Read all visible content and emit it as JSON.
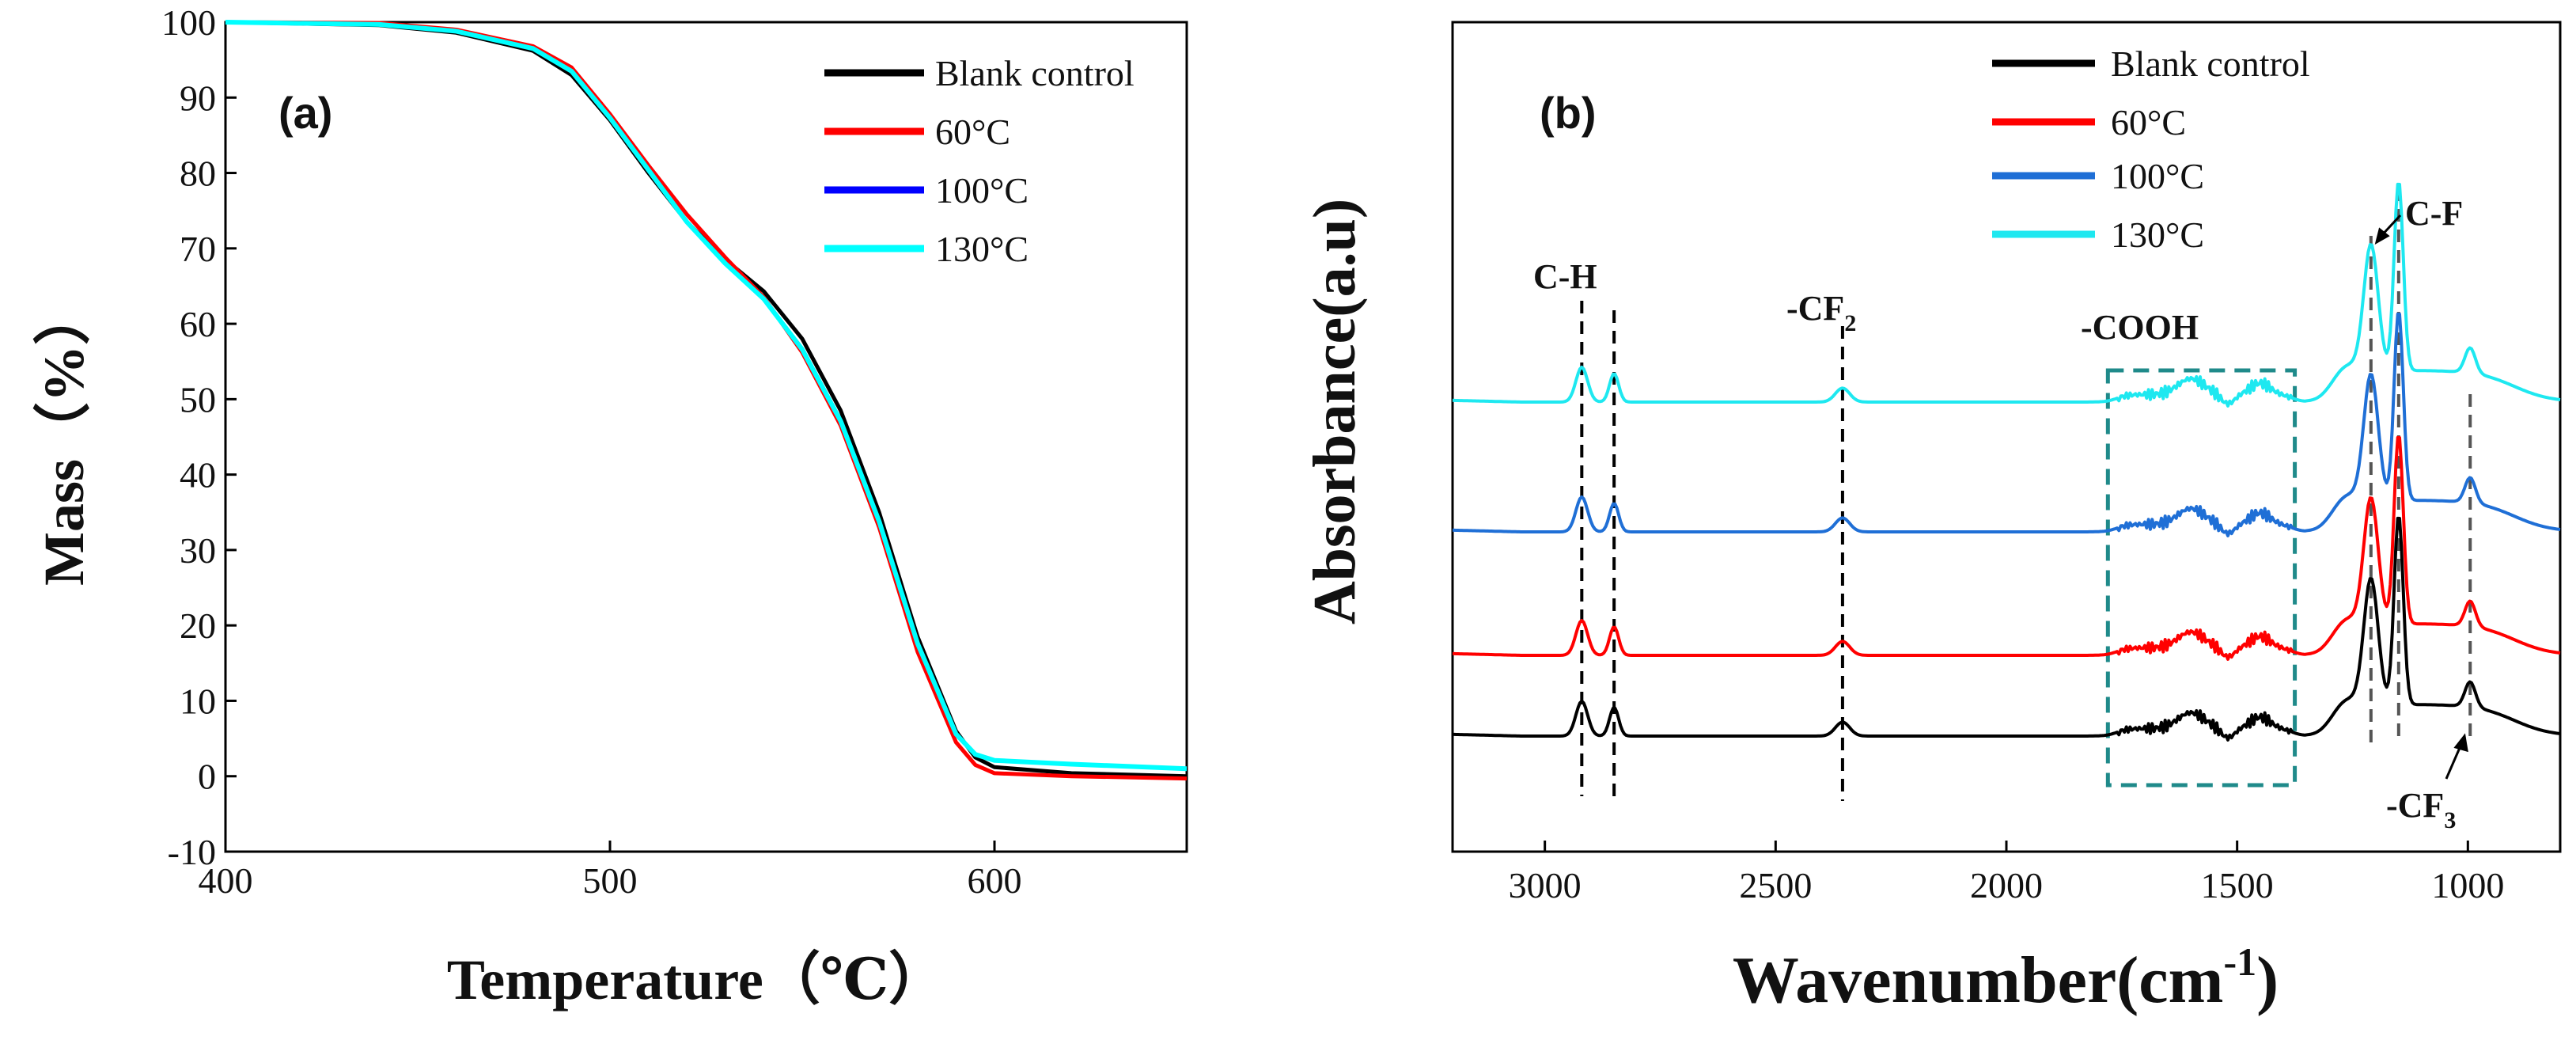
{
  "chart_data": [
    {
      "type": "line",
      "panel_label": "(a)",
      "xlabel": "Temperature（℃）",
      "ylabel": "Mass（%）",
      "xlim": [
        400,
        650
      ],
      "ylim": [
        -10,
        100
      ],
      "xticks": [
        "400",
        "500",
        "600"
      ],
      "yticks": [
        "-10",
        "0",
        "10",
        "20",
        "30",
        "40",
        "50",
        "60",
        "70",
        "80",
        "90",
        "100"
      ],
      "legend_position": "top-right",
      "series": [
        {
          "name": "Blank control",
          "color": "#000000",
          "x": [
            400,
            440,
            460,
            480,
            490,
            500,
            510,
            520,
            530,
            540,
            550,
            560,
            570,
            580,
            590,
            595,
            600,
            620,
            650
          ],
          "y": [
            100,
            99.6,
            98.6,
            96.2,
            93,
            87,
            80,
            73.5,
            68.5,
            64.3,
            58,
            48.5,
            35,
            18.5,
            6,
            2.5,
            1.2,
            0.4,
            0
          ]
        },
        {
          "name": "60°C",
          "color": "#ff0000",
          "x": [
            400,
            440,
            460,
            480,
            490,
            500,
            510,
            520,
            530,
            540,
            550,
            560,
            570,
            580,
            590,
            595,
            600,
            620,
            650
          ],
          "y": [
            100,
            99.9,
            99,
            96.8,
            94,
            87.8,
            81,
            74.5,
            68.8,
            63.5,
            56.2,
            46.5,
            33,
            16.5,
            4.5,
            1.5,
            0.4,
            0,
            -0.3
          ]
        },
        {
          "name": "100°C",
          "color": "#0000ff",
          "x": [
            400,
            440,
            460,
            480,
            490,
            500,
            510,
            520,
            530,
            540,
            550,
            560,
            570,
            580,
            590,
            595,
            600,
            620,
            650
          ],
          "y": [
            100,
            99.7,
            98.8,
            96.5,
            93.5,
            87.3,
            80.4,
            73.5,
            68,
            63.3,
            56.6,
            47.1,
            33.8,
            17.6,
            5.6,
            2.9,
            2.1,
            1.6,
            1.0
          ]
        },
        {
          "name": "130°C",
          "color": "#00ffff",
          "x": [
            400,
            440,
            460,
            480,
            490,
            500,
            510,
            520,
            530,
            540,
            550,
            560,
            570,
            580,
            590,
            595,
            600,
            620,
            650
          ],
          "y": [
            100,
            99.7,
            98.8,
            96.5,
            93.5,
            87.3,
            80.4,
            73.5,
            68,
            63.3,
            56.6,
            47.1,
            33.8,
            17.6,
            5.6,
            2.9,
            2.1,
            1.6,
            1.0
          ]
        }
      ]
    },
    {
      "type": "line",
      "panel_label": "(b)",
      "xlabel": "Wavenumber(cm",
      "xlabel_sup": "-1",
      "xlabel_end": ")",
      "ylabel": "Absorbance(a.u)",
      "xlim": [
        3200,
        800
      ],
      "xticks": [
        "3000",
        "2500",
        "2000",
        "1500",
        "1000"
      ],
      "legend_position": "top",
      "series": [
        {
          "name": "Blank control",
          "color": "#000000",
          "offset": 0
        },
        {
          "name": "60°C",
          "color": "#ff0000",
          "offset": 1
        },
        {
          "name": "100°C",
          "color": "#1f6fd6",
          "offset": 2
        },
        {
          "name": "130°C",
          "color": "#1ee8f0",
          "offset": 3
        }
      ],
      "peaks_cm": [
        2920,
        2850,
        2355,
        1210,
        1150,
        995
      ],
      "annotations": {
        "ch": "C-H",
        "cf2": "-CF",
        "cf2_sub": "2",
        "cooh": "-COOH",
        "cf": "C-F",
        "cf3": "-CF",
        "cf3_sub": "3"
      }
    }
  ]
}
